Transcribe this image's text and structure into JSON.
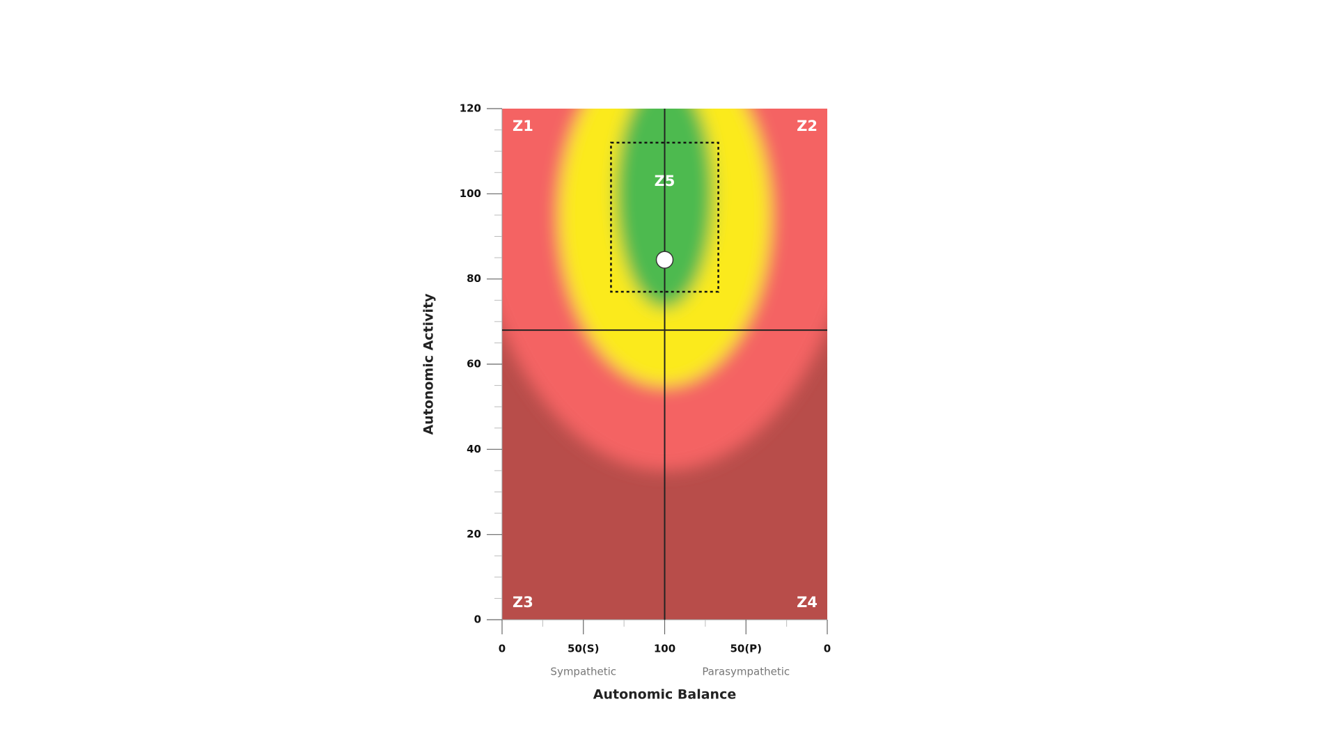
{
  "chart_data": {
    "type": "scatter",
    "x_label": "Autonomic Balance",
    "y_label": "Autonomic Activity",
    "x_sublabels": [
      {
        "x": 50,
        "label": "Sympathetic"
      },
      {
        "x": 150,
        "label": "Parasympathetic"
      }
    ],
    "xlim": [
      0,
      200
    ],
    "xticks": [
      {
        "value": 0,
        "label": "0"
      },
      {
        "value": 50,
        "label": "50(S)"
      },
      100,
      {
        "value": 150,
        "label": "50(P)"
      },
      {
        "value": 200,
        "label": "0"
      }
    ],
    "xminorticks": [
      25,
      75,
      125,
      175
    ],
    "ylim": [
      0,
      120
    ],
    "yticks": [
      0,
      20,
      40,
      60,
      80,
      100,
      120
    ],
    "yminorticks": [
      5,
      10,
      15,
      25,
      30,
      35,
      45,
      50,
      55,
      65,
      70,
      75,
      85,
      90,
      95,
      105,
      110,
      115
    ],
    "zones": [
      "Z1",
      "Z2",
      "Z3",
      "Z4",
      "Z5"
    ],
    "crosshair": {
      "x": 100,
      "y": 68
    },
    "target_box": {
      "x": [
        67,
        133
      ],
      "y": [
        77,
        112
      ]
    },
    "x": [
      100
    ],
    "values": [
      84.5
    ],
    "color": "#ffffff"
  }
}
